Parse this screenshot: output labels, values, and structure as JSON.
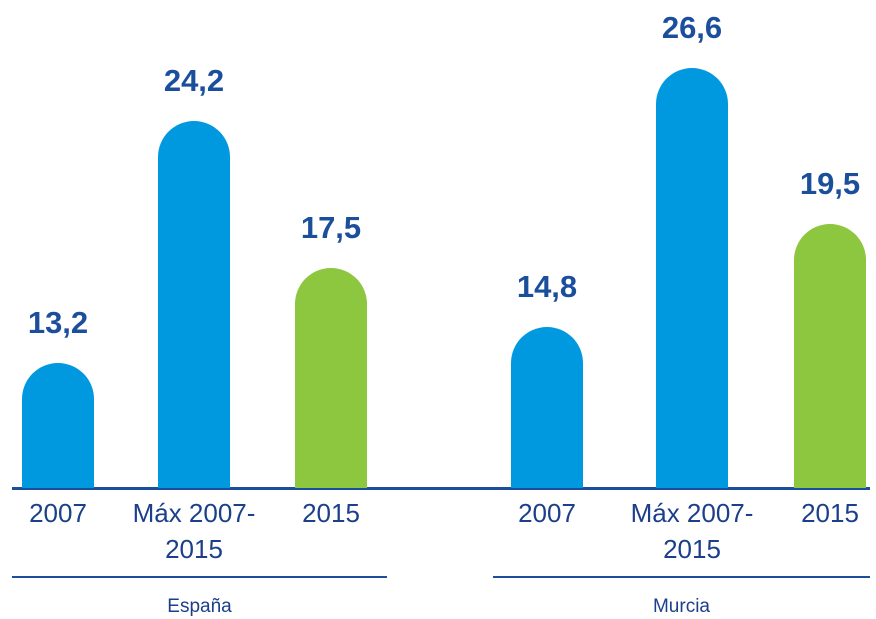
{
  "chart_data": {
    "type": "bar",
    "ylim": [
      7.5,
      27.5
    ],
    "colors": [
      "#0099e0",
      "#0099e0",
      "#8dc63f"
    ],
    "groups": [
      {
        "name": "España",
        "categories": [
          "2007",
          "Máx 2007-2015",
          "2015"
        ],
        "values": [
          13.2,
          24.2,
          17.5
        ],
        "value_labels": [
          "13,2",
          "24,2",
          "17,5"
        ]
      },
      {
        "name": "Murcia",
        "categories": [
          "2007",
          "Máx 2007-2015",
          "2015"
        ],
        "values": [
          14.8,
          26.6,
          19.5
        ],
        "value_labels": [
          "14,8",
          "26,6",
          "19,5"
        ]
      }
    ]
  }
}
